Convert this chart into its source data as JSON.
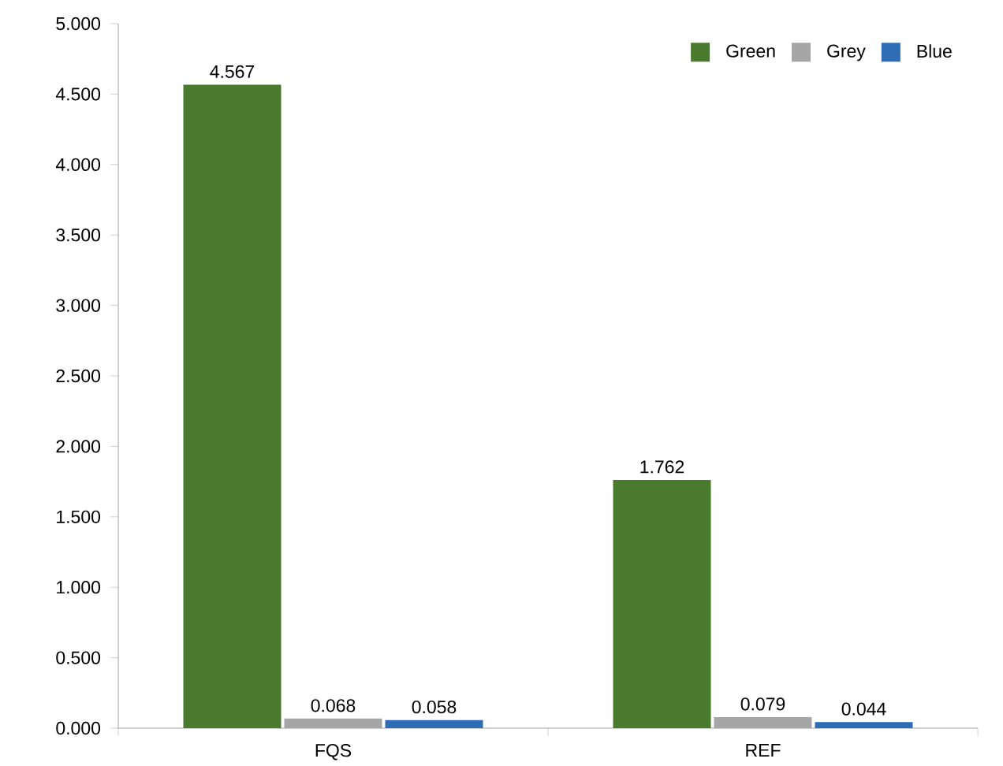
{
  "chart_data": {
    "type": "bar",
    "categories": [
      "FQS",
      "REF"
    ],
    "series": [
      {
        "name": "Green",
        "color": "#4a7a2e",
        "values": [
          4.567,
          1.762
        ]
      },
      {
        "name": "Grey",
        "color": "#a6a6a6",
        "values": [
          0.068,
          0.079
        ]
      },
      {
        "name": "Blue",
        "color": "#2e6db5",
        "values": [
          0.058,
          0.044
        ]
      }
    ],
    "ylim": [
      0,
      5
    ],
    "yticks": [
      {
        "value": 0,
        "label": "0.000"
      },
      {
        "value": 0.5,
        "label": "0.500"
      },
      {
        "value": 1,
        "label": "1.000"
      },
      {
        "value": 1.5,
        "label": "1.500"
      },
      {
        "value": 2,
        "label": "2.000"
      },
      {
        "value": 2.5,
        "label": "2.500"
      },
      {
        "value": 3,
        "label": "3.000"
      },
      {
        "value": 3.5,
        "label": "3.500"
      },
      {
        "value": 4,
        "label": "4.000"
      },
      {
        "value": 4.5,
        "label": "4.500"
      },
      {
        "value": 5,
        "label": "5.000"
      }
    ],
    "data_labels": true,
    "legend": "top right",
    "grid": false
  }
}
